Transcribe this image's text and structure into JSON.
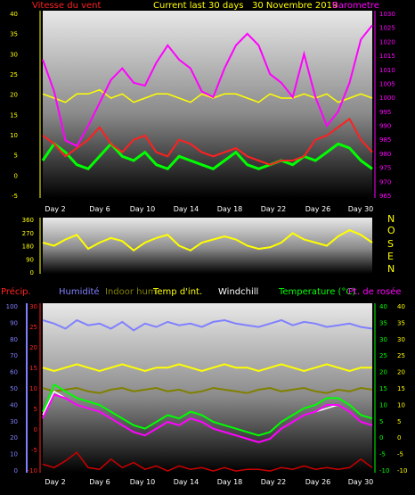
{
  "header": {
    "wind_title": "Vitesse du vent",
    "current_label": "Current last 30 days",
    "month_label": "30 Novembre 2019",
    "barometer_title": "Barometre"
  },
  "colors": {
    "wind": "#ff2020",
    "gust": "#00ff00",
    "barometer": "#ff00ff",
    "direction": "#ffff00",
    "precip": "#cc0000",
    "humidity": "#8080ff",
    "indoor_hum": "#808000",
    "temp_int": "#ffff00",
    "windchill": "#ffffff",
    "temperature": "#00ff00",
    "dewpoint": "#ff00ff"
  },
  "legend": {
    "precip": "Précip.",
    "humidity": "Humidité",
    "indoor_hum": "Indoor hum",
    "temp_int": "Temp d'int.",
    "windchill": "Windchill",
    "temperature": "Temperature (°C)",
    "dewpoint": "Pt. de rosée"
  },
  "compass": [
    "N",
    "O",
    "S",
    "E",
    "N"
  ],
  "chart_data": [
    {
      "type": "line",
      "x_ticks": [
        "Day 2",
        "Day 6",
        "Day 10",
        "Day 14",
        "Day 18",
        "Day 22",
        "Day 26",
        "Day 30"
      ],
      "y_left": {
        "ticks": [
          40,
          35,
          30,
          25,
          20,
          15,
          10,
          5,
          0,
          -5
        ],
        "ylim": [
          -5,
          40
        ]
      },
      "y_right": {
        "ticks": [
          1030,
          1025,
          1020,
          1015,
          1010,
          1005,
          1000,
          995,
          990,
          985,
          980,
          975,
          970,
          965
        ],
        "ylim": [
          965,
          1030
        ]
      },
      "series": [
        {
          "name": "Vitesse du vent",
          "axis": "left",
          "values": [
            10,
            8,
            5,
            7,
            9,
            12,
            8,
            6,
            9,
            10,
            6,
            5,
            9,
            8,
            6,
            5,
            6,
            7,
            5,
            4,
            3,
            4,
            4,
            5,
            9,
            10,
            12,
            14,
            9,
            6
          ]
        },
        {
          "name": "Barometre",
          "axis": "right",
          "values": [
            1013,
            1002,
            985,
            983,
            990,
            998,
            1006,
            1010,
            1005,
            1004,
            1012,
            1018,
            1013,
            1010,
            1002,
            1000,
            1010,
            1018,
            1022,
            1018,
            1008,
            1005,
            1000,
            1015,
            1000,
            990,
            995,
            1005,
            1020,
            1025
          ]
        },
        {
          "axis": "left",
          "values": [
            4,
            8,
            6,
            3,
            2,
            5,
            8,
            5,
            4,
            6,
            3,
            2,
            5,
            4,
            3,
            2,
            4,
            6,
            3,
            2,
            3,
            4,
            3,
            5,
            4,
            6,
            8,
            7,
            4,
            2
          ]
        },
        {
          "axis": "left",
          "values": [
            20,
            19,
            18,
            20,
            20,
            21,
            19,
            20,
            18,
            19,
            20,
            20,
            19,
            18,
            20,
            19,
            20,
            20,
            19,
            18,
            20,
            19,
            19,
            20,
            19,
            20,
            18,
            19,
            20,
            19
          ]
        }
      ]
    },
    {
      "type": "line",
      "x_ticks": [
        "Day 2",
        "Day 6",
        "Day 10",
        "Day 14",
        "Day 18",
        "Day 22",
        "Day 26",
        "Day 30"
      ],
      "y_left": {
        "ticks": [
          360,
          270,
          180,
          90,
          0
        ],
        "ylim": [
          0,
          360
        ]
      },
      "series": [
        {
          "axis": "left",
          "values": [
            200,
            180,
            220,
            250,
            160,
            200,
            230,
            210,
            150,
            200,
            230,
            250,
            180,
            150,
            200,
            220,
            240,
            220,
            180,
            160,
            170,
            200,
            260,
            220,
            200,
            180,
            240,
            280,
            250,
            200
          ]
        }
      ]
    },
    {
      "type": "line",
      "x_ticks": [
        "Day 2",
        "Day 6",
        "Day 10",
        "Day 14",
        "Day 18",
        "Day 22",
        "Day 26",
        "Day 30"
      ],
      "y_far_left": {
        "ticks": [
          100,
          90,
          80,
          70,
          60,
          50,
          40,
          30,
          20,
          10,
          0
        ],
        "ylim": [
          0,
          100
        ]
      },
      "y_left": {
        "ticks": [
          30,
          25,
          20,
          15,
          10,
          5,
          0,
          -5,
          -10
        ],
        "ylim": [
          -10,
          30
        ]
      },
      "y_right": {
        "ticks": [
          40,
          35,
          30,
          25,
          20,
          15,
          10,
          5,
          0,
          -5,
          -10
        ],
        "ylim": [
          -10,
          40
        ]
      },
      "series": [
        {
          "name": "Précip.",
          "axis": "far_left",
          "values": [
            5,
            3,
            7,
            12,
            3,
            2,
            8,
            3,
            6,
            2,
            4,
            1,
            4,
            2,
            3,
            1,
            3,
            1,
            2,
            2,
            1,
            3,
            2,
            4,
            2,
            3,
            2,
            3,
            8,
            3
          ]
        },
        {
          "name": "Humidité",
          "axis": "far_left",
          "values": [
            90,
            88,
            85,
            90,
            87,
            88,
            85,
            89,
            84,
            88,
            86,
            89,
            87,
            88,
            86,
            89,
            90,
            88,
            87,
            86,
            88,
            90,
            87,
            89,
            88,
            86,
            87,
            88,
            86,
            85
          ]
        },
        {
          "name": "Indoor hum",
          "axis": "far_left",
          "values": [
            50,
            48,
            49,
            50,
            48,
            47,
            49,
            50,
            48,
            49,
            50,
            48,
            49,
            47,
            48,
            50,
            49,
            48,
            47,
            49,
            50,
            48,
            49,
            50,
            48,
            47,
            49,
            48,
            50,
            49
          ]
        },
        {
          "name": "Temp d'int.",
          "axis": "right",
          "values": [
            21,
            20,
            21,
            22,
            21,
            20,
            21,
            22,
            21,
            20,
            21,
            21,
            22,
            21,
            20,
            21,
            22,
            21,
            21,
            20,
            21,
            22,
            21,
            20,
            21,
            22,
            21,
            20,
            21,
            21
          ]
        },
        {
          "name": "Windchill",
          "axis": "right",
          "values": [
            7,
            14,
            12,
            10,
            9,
            8,
            6,
            4,
            2,
            1,
            3,
            5,
            4,
            6,
            5,
            3,
            2,
            1,
            0,
            -1,
            0,
            3,
            5,
            7,
            8,
            9,
            10,
            8,
            5,
            4
          ]
        },
        {
          "name": "Temperature (°C)",
          "axis": "right",
          "values": [
            8,
            16,
            14,
            12,
            11,
            10,
            8,
            6,
            4,
            3,
            5,
            7,
            6,
            8,
            7,
            5,
            4,
            3,
            2,
            1,
            2,
            5,
            7,
            9,
            10,
            12,
            12,
            10,
            7,
            6
          ]
        },
        {
          "name": "Pt. de rosée",
          "axis": "right",
          "values": [
            6,
            13,
            12,
            10,
            9,
            8,
            6,
            4,
            2,
            1,
            3,
            5,
            4,
            6,
            5,
            3,
            2,
            1,
            0,
            -1,
            0,
            3,
            5,
            7,
            8,
            10,
            10,
            8,
            5,
            4
          ]
        }
      ]
    }
  ]
}
